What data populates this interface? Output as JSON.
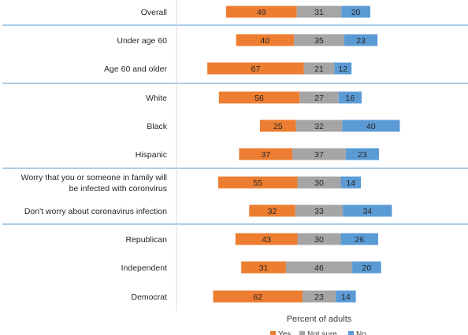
{
  "chart_data": {
    "type": "bar",
    "orientation": "horizontal",
    "stacked": "diverging",
    "categories": [
      [
        "Overall"
      ],
      [
        "Under age 60"
      ],
      [
        "Age 60 and older"
      ],
      [
        "White"
      ],
      [
        "Black"
      ],
      [
        "Hispanic"
      ],
      [
        "Worry that you or someone in family will",
        "be infected with coronvirus"
      ],
      [
        "Don't worry about coronavirus infection"
      ],
      [
        "Republican"
      ],
      [
        "Independent"
      ],
      [
        "Democrat"
      ]
    ],
    "series": [
      {
        "name": "Yes",
        "color": "#ed7d31",
        "values": [
          49,
          40,
          67,
          56,
          25,
          37,
          55,
          32,
          43,
          31,
          62
        ]
      },
      {
        "name": "Not sure",
        "color": "#a5a5a5",
        "values": [
          31,
          35,
          21,
          27,
          32,
          37,
          30,
          33,
          30,
          46,
          23
        ]
      },
      {
        "name": "No",
        "color": "#5b9bd5",
        "values": [
          20,
          23,
          12,
          16,
          40,
          23,
          14,
          34,
          26,
          20,
          14
        ]
      }
    ],
    "group_separators_after": [
      0,
      2,
      5,
      7
    ],
    "xlabel": "Percent of adults",
    "legend_position": "bottom"
  }
}
